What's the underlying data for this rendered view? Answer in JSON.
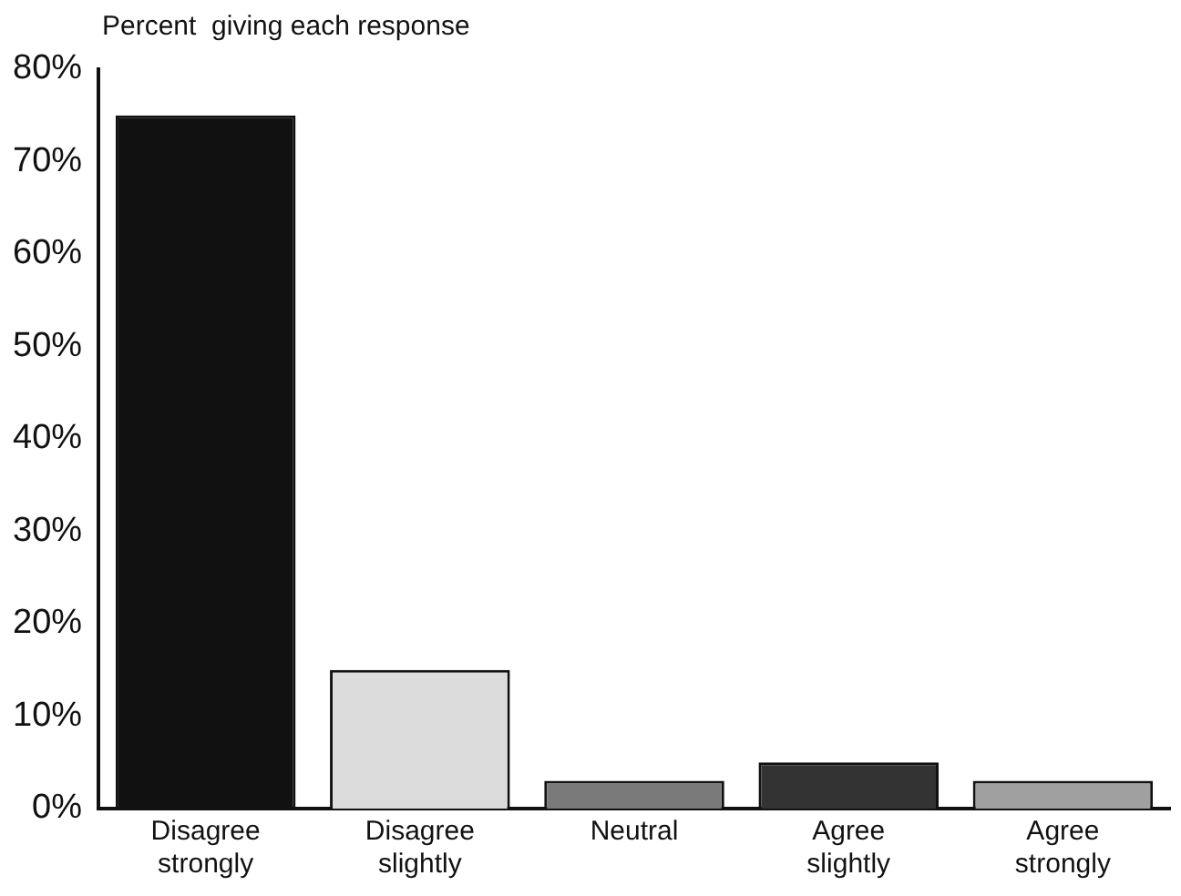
{
  "chart_data": {
    "type": "bar",
    "ylabel": "Percent  giving each response",
    "categories": [
      "Disagree strongly",
      "Disagree slightly",
      "Neutral",
      "Agree slightly",
      "Agree strongly"
    ],
    "values": [
      75,
      15,
      3,
      5,
      3
    ],
    "colors": [
      "#111111",
      "#dcdcdc",
      "#7a7a7a",
      "#333333",
      "#a0a0a0"
    ],
    "ylim": [
      0,
      80
    ],
    "yticks": [
      {
        "value": 0,
        "label": "0%"
      },
      {
        "value": 10,
        "label": "10%"
      },
      {
        "value": 20,
        "label": "20%"
      },
      {
        "value": 30,
        "label": "30%"
      },
      {
        "value": 40,
        "label": "40%"
      },
      {
        "value": 50,
        "label": "50%"
      },
      {
        "value": 60,
        "label": "60%"
      },
      {
        "value": 70,
        "label": "70%"
      },
      {
        "value": 80,
        "label": "80%"
      }
    ],
    "grid": false,
    "legend": false
  }
}
